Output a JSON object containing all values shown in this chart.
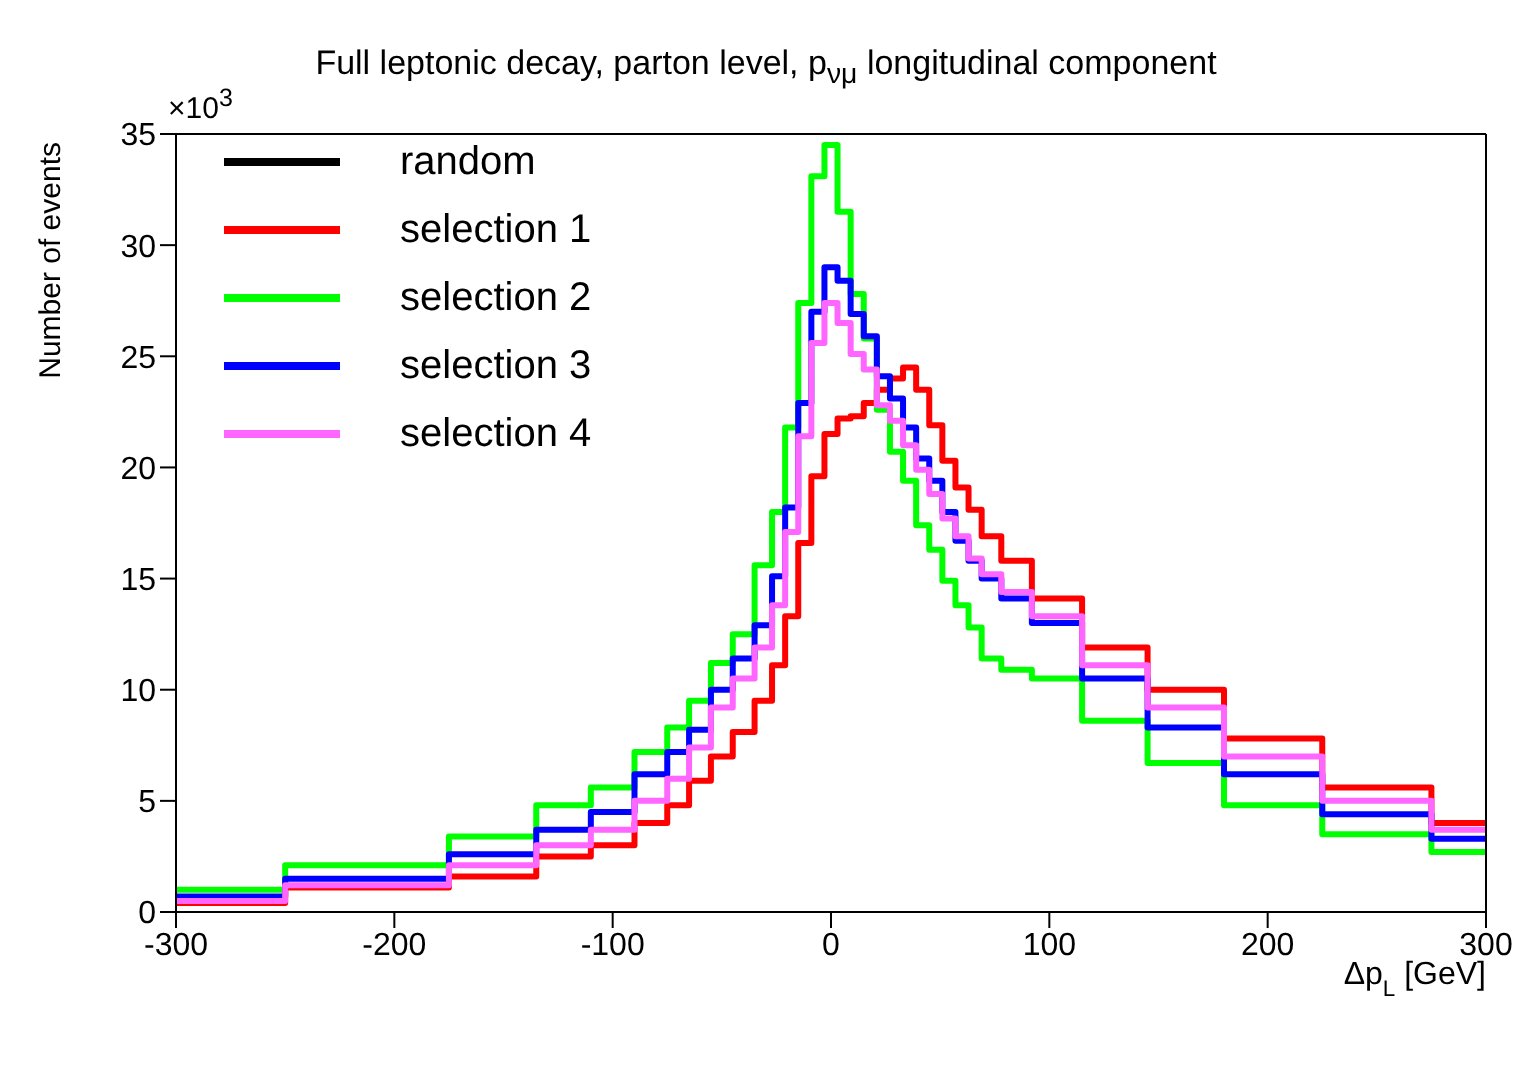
{
  "chart_data": {
    "type": "step",
    "title": "Full leptonic decay, parton level, p$_{νμ}$ longitudinal component",
    "xlabel": "Δp$_{L}$ [GeV]",
    "ylabel": "Number of events",
    "annotations": [
      "×10$^{3}$"
    ],
    "x": [
      -300,
      -200,
      -150,
      -120,
      -100,
      -80,
      -70,
      -60,
      -50,
      -40,
      -30,
      -24,
      -18,
      -12,
      -6,
      0,
      6,
      12,
      18,
      24,
      30,
      36,
      42,
      48,
      54,
      60,
      66,
      72,
      84,
      100,
      130,
      160,
      200,
      250,
      300
    ],
    "series": [
      {
        "name": "random",
        "color": "#000000",
        "values": [
          null,
          null,
          null,
          null,
          null,
          null,
          null,
          null,
          null,
          null,
          null,
          null,
          null,
          null,
          null,
          null,
          null,
          null,
          null,
          null,
          null,
          null,
          null,
          null,
          null,
          null,
          null,
          null,
          null,
          null,
          null,
          null,
          null,
          null,
          null
        ]
      },
      {
        "name": "selection 1",
        "color": "#ff0000",
        "values": [
          0.4,
          1.1,
          1.6,
          2.5,
          3.0,
          4.0,
          4.8,
          5.9,
          7.0,
          8.1,
          9.5,
          11.1,
          13.3,
          16.6,
          19.6,
          21.5,
          22.2,
          22.3,
          22.9,
          23.5,
          24.0,
          24.5,
          23.5,
          21.9,
          20.3,
          19.1,
          18.1,
          16.9,
          15.8,
          14.1,
          11.9,
          10.0,
          7.8,
          5.6,
          4.0
        ]
      },
      {
        "name": "selection 2",
        "color": "#00ff00",
        "values": [
          1.0,
          2.1,
          3.4,
          4.8,
          5.6,
          7.2,
          8.3,
          9.5,
          11.2,
          12.5,
          15.6,
          18.0,
          21.8,
          27.4,
          33.1,
          34.5,
          31.5,
          27.8,
          25.8,
          22.6,
          20.7,
          19.4,
          17.4,
          16.3,
          14.9,
          13.8,
          12.8,
          11.4,
          10.9,
          10.5,
          8.6,
          6.7,
          4.8,
          3.5,
          2.7
        ]
      },
      {
        "name": "selection 3",
        "color": "#0000ff",
        "values": [
          0.7,
          1.5,
          2.6,
          3.7,
          4.5,
          6.2,
          7.2,
          8.2,
          10.0,
          11.4,
          12.9,
          15.1,
          18.2,
          22.9,
          27.0,
          29.0,
          28.4,
          26.9,
          25.9,
          24.1,
          23.1,
          21.8,
          20.4,
          19.4,
          18.0,
          16.7,
          15.8,
          15.0,
          14.1,
          13.0,
          10.5,
          8.3,
          6.2,
          4.4,
          3.3
        ]
      },
      {
        "name": "selection 4",
        "color": "#ff66ff",
        "values": [
          0.5,
          1.2,
          2.1,
          3.0,
          3.7,
          5.0,
          6.0,
          7.4,
          9.2,
          10.5,
          11.9,
          13.8,
          17.1,
          21.4,
          25.6,
          27.4,
          26.5,
          25.1,
          24.4,
          22.8,
          22.1,
          21.0,
          19.9,
          18.8,
          17.7,
          16.9,
          15.9,
          15.2,
          14.4,
          13.3,
          11.1,
          9.2,
          7.0,
          5.0,
          3.7
        ]
      }
    ],
    "xlim": [
      -300,
      300
    ],
    "xticks": [
      -300,
      -200,
      -100,
      0,
      100,
      200,
      300
    ],
    "ylim": [
      0,
      35
    ],
    "yticks": [
      0,
      5,
      10,
      15,
      20,
      25,
      30,
      35
    ],
    "grid": false,
    "legend": "top left",
    "marker": "none",
    "line_style": "solid"
  }
}
